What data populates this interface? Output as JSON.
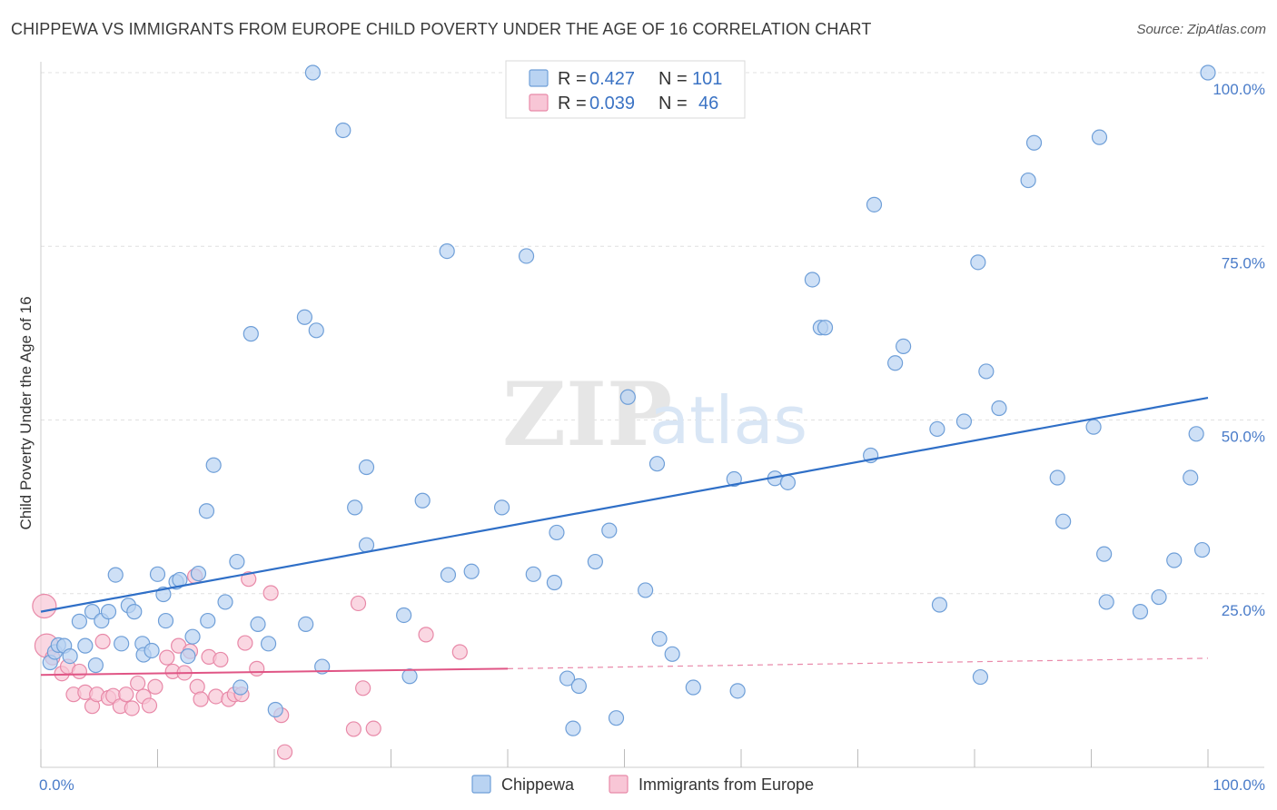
{
  "title": "CHIPPEWA VS IMMIGRANTS FROM EUROPE CHILD POVERTY UNDER THE AGE OF 16 CORRELATION CHART",
  "source": "Source: ZipAtlas.com",
  "watermark": {
    "zip": "ZIP",
    "atlas": "atlas"
  },
  "colors": {
    "chippewa_fill": "#b9d3f2",
    "chippewa_stroke": "#6f9fd8",
    "chippewa_line": "#2f6fc7",
    "immigrants_fill": "#f8c6d6",
    "immigrants_stroke": "#e889a8",
    "immigrants_line": "#e05585",
    "tick_label": "#4a7cc9",
    "grid": "#e0e0e0"
  },
  "legend": {
    "rows": [
      {
        "r_label": "R =",
        "r_value": "0.427",
        "n_label": "N =",
        "n_value": "101"
      },
      {
        "r_label": "R =",
        "r_value": "0.039",
        "n_label": "N =",
        "n_value": "46"
      }
    ]
  },
  "chart_data": {
    "type": "scatter",
    "xlabel": "",
    "ylabel": "Child Poverty Under the Age of 16",
    "xlim": [
      0,
      100
    ],
    "ylim": [
      0,
      100
    ],
    "x_tick_labels": [
      {
        "value": 0,
        "label": "0.0%"
      },
      {
        "value": 100,
        "label": "100.0%"
      }
    ],
    "y_tick_labels": [
      {
        "value": 25,
        "label": "25.0%"
      },
      {
        "value": 50,
        "label": "50.0%"
      },
      {
        "value": 75,
        "label": "75.0%"
      },
      {
        "value": 100,
        "label": "100.0%"
      }
    ],
    "grid": true,
    "legend_position": "top-center",
    "series": [
      {
        "name": "Chippewa",
        "trend": {
          "x0": 0,
          "y0": 22.4,
          "x1": 100,
          "y1": 53.2
        },
        "points": [
          [
            0.8,
            15.1
          ],
          [
            1.2,
            16.6
          ],
          [
            1.5,
            17.6
          ],
          [
            2.0,
            17.5
          ],
          [
            2.5,
            16.0
          ],
          [
            3.3,
            21.0
          ],
          [
            3.8,
            17.5
          ],
          [
            4.4,
            22.4
          ],
          [
            4.7,
            14.7
          ],
          [
            5.2,
            21.1
          ],
          [
            5.8,
            22.4
          ],
          [
            6.4,
            27.7
          ],
          [
            6.9,
            17.8
          ],
          [
            7.5,
            23.3
          ],
          [
            8.0,
            22.4
          ],
          [
            8.7,
            17.8
          ],
          [
            8.8,
            16.2
          ],
          [
            9.5,
            16.8
          ],
          [
            10.0,
            27.8
          ],
          [
            10.5,
            24.9
          ],
          [
            10.7,
            21.1
          ],
          [
            11.6,
            26.7
          ],
          [
            11.9,
            27.0
          ],
          [
            12.6,
            16.0
          ],
          [
            13.0,
            18.8
          ],
          [
            13.5,
            27.9
          ],
          [
            14.2,
            36.9
          ],
          [
            14.3,
            21.1
          ],
          [
            14.8,
            43.5
          ],
          [
            15.8,
            23.8
          ],
          [
            16.8,
            29.6
          ],
          [
            17.1,
            11.5
          ],
          [
            18.0,
            62.4
          ],
          [
            18.6,
            20.6
          ],
          [
            19.5,
            17.8
          ],
          [
            20.1,
            8.3
          ],
          [
            22.6,
            64.8
          ],
          [
            22.7,
            20.6
          ],
          [
            23.3,
            100.0
          ],
          [
            23.6,
            62.9
          ],
          [
            24.1,
            14.5
          ],
          [
            25.9,
            91.7
          ],
          [
            26.9,
            37.4
          ],
          [
            27.9,
            43.2
          ],
          [
            27.9,
            32.0
          ],
          [
            31.1,
            21.9
          ],
          [
            31.6,
            13.1
          ],
          [
            32.7,
            38.4
          ],
          [
            34.8,
            74.3
          ],
          [
            34.9,
            27.7
          ],
          [
            36.9,
            28.2
          ],
          [
            39.5,
            37.4
          ],
          [
            41.6,
            73.6
          ],
          [
            42.2,
            27.8
          ],
          [
            44.0,
            26.6
          ],
          [
            44.2,
            33.8
          ],
          [
            45.1,
            12.8
          ],
          [
            45.6,
            5.6
          ],
          [
            46.1,
            11.7
          ],
          [
            47.5,
            29.6
          ],
          [
            48.7,
            34.1
          ],
          [
            49.3,
            7.1
          ],
          [
            50.3,
            53.3
          ],
          [
            51.8,
            25.5
          ],
          [
            52.8,
            43.7
          ],
          [
            53.0,
            18.5
          ],
          [
            54.1,
            16.3
          ],
          [
            55.9,
            11.5
          ],
          [
            59.4,
            41.5
          ],
          [
            59.7,
            11.0
          ],
          [
            62.9,
            41.6
          ],
          [
            64.0,
            41.0
          ],
          [
            66.1,
            70.2
          ],
          [
            66.8,
            63.3
          ],
          [
            67.2,
            63.3
          ],
          [
            71.1,
            44.9
          ],
          [
            71.4,
            81.0
          ],
          [
            73.2,
            58.2
          ],
          [
            73.9,
            60.6
          ],
          [
            76.8,
            48.7
          ],
          [
            77.0,
            23.4
          ],
          [
            79.1,
            49.8
          ],
          [
            80.3,
            72.7
          ],
          [
            80.5,
            13.0
          ],
          [
            82.1,
            51.7
          ],
          [
            84.6,
            84.5
          ],
          [
            85.1,
            89.9
          ],
          [
            87.1,
            41.7
          ],
          [
            87.6,
            35.4
          ],
          [
            90.2,
            49.0
          ],
          [
            90.7,
            90.7
          ],
          [
            91.1,
            30.7
          ],
          [
            91.3,
            23.8
          ],
          [
            94.2,
            22.4
          ],
          [
            95.8,
            24.5
          ],
          [
            97.1,
            29.8
          ],
          [
            98.5,
            41.7
          ],
          [
            99.0,
            48.0
          ],
          [
            99.5,
            31.3
          ],
          [
            100.0,
            100.0
          ],
          [
            81.0,
            57.0
          ]
        ]
      },
      {
        "name": "Immigrants from Europe",
        "trend": {
          "x0": 0,
          "y0": 13.3,
          "x1": 40,
          "y1": 14.2,
          "x_dash_end": 100,
          "y_dash_end": 15.7
        },
        "points": [
          [
            0.3,
            23.2
          ],
          [
            0.5,
            17.5
          ],
          [
            1.0,
            15.8
          ],
          [
            1.8,
            13.5
          ],
          [
            2.3,
            14.5
          ],
          [
            2.8,
            10.5
          ],
          [
            3.3,
            13.8
          ],
          [
            3.8,
            10.8
          ],
          [
            4.4,
            8.8
          ],
          [
            4.8,
            10.5
          ],
          [
            5.3,
            18.1
          ],
          [
            5.8,
            10.0
          ],
          [
            6.2,
            10.3
          ],
          [
            6.8,
            8.8
          ],
          [
            7.3,
            10.5
          ],
          [
            7.8,
            8.5
          ],
          [
            8.3,
            12.1
          ],
          [
            8.8,
            10.2
          ],
          [
            9.3,
            8.9
          ],
          [
            9.8,
            11.6
          ],
          [
            10.8,
            15.8
          ],
          [
            11.3,
            13.8
          ],
          [
            11.8,
            17.5
          ],
          [
            12.3,
            13.6
          ],
          [
            12.8,
            16.7
          ],
          [
            13.2,
            27.5
          ],
          [
            13.4,
            11.6
          ],
          [
            13.7,
            9.8
          ],
          [
            14.4,
            15.9
          ],
          [
            15.0,
            10.2
          ],
          [
            15.4,
            15.5
          ],
          [
            16.1,
            9.8
          ],
          [
            16.6,
            10.5
          ],
          [
            17.2,
            10.5
          ],
          [
            17.5,
            17.9
          ],
          [
            17.8,
            27.1
          ],
          [
            18.5,
            14.2
          ],
          [
            19.7,
            25.1
          ],
          [
            20.6,
            7.5
          ],
          [
            20.9,
            2.2
          ],
          [
            26.8,
            5.5
          ],
          [
            27.2,
            23.6
          ],
          [
            27.6,
            11.4
          ],
          [
            28.5,
            5.6
          ],
          [
            33.0,
            19.1
          ],
          [
            35.9,
            16.6
          ]
        ]
      }
    ]
  },
  "bottom_legend": [
    {
      "label": "Chippewa"
    },
    {
      "label": "Immigrants from Europe"
    }
  ]
}
